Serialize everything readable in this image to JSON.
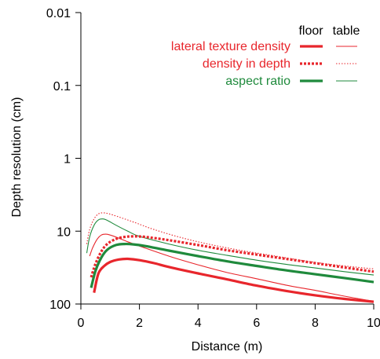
{
  "chart_data": {
    "type": "line",
    "title": "",
    "xlabel": "Distance (m)",
    "ylabel": "Depth resolution (cm)",
    "xlim": [
      0,
      10
    ],
    "ylim": [
      100,
      0.01
    ],
    "y_scale": "log",
    "y_inverted": true,
    "grid": false,
    "legend_position": "top-right",
    "legend_columns": [
      "floor",
      "table"
    ],
    "x_ticks": [
      {
        "value": 0,
        "label": "0"
      },
      {
        "value": 2,
        "label": "2"
      },
      {
        "value": 4,
        "label": "4"
      },
      {
        "value": 6,
        "label": "6"
      },
      {
        "value": 8,
        "label": "8"
      },
      {
        "value": 10,
        "label": "10"
      }
    ],
    "y_ticks": [
      {
        "value": 0.01,
        "label": "0.01"
      },
      {
        "value": 0.1,
        "label": "0.1"
      },
      {
        "value": 1,
        "label": "1"
      },
      {
        "value": 10,
        "label": "10"
      },
      {
        "value": 100,
        "label": "100"
      }
    ],
    "legend": [
      {
        "label": "lateral texture density",
        "color": "#e8262c",
        "style": "solid"
      },
      {
        "label": "density in depth",
        "color": "#e8262c",
        "style": "dotted"
      },
      {
        "label": "aspect ratio",
        "color": "#1f8a3c",
        "style": "solid"
      }
    ],
    "series": [
      {
        "legend_row": 0,
        "legend_column": 0,
        "color": "#e8262c",
        "style": "solid",
        "weight": "thick",
        "points": [
          [
            0.45,
            70
          ],
          [
            0.6,
            38
          ],
          [
            0.8,
            30
          ],
          [
            1.0,
            26.5
          ],
          [
            1.3,
            24.5
          ],
          [
            1.6,
            24
          ],
          [
            2.0,
            25
          ],
          [
            2.5,
            27.5
          ],
          [
            3.0,
            31
          ],
          [
            4.0,
            38
          ],
          [
            5.0,
            46
          ],
          [
            6.0,
            56
          ],
          [
            7.0,
            66
          ],
          [
            8.0,
            76
          ],
          [
            9.0,
            85
          ],
          [
            10.0,
            93
          ]
        ]
      },
      {
        "legend_row": 0,
        "legend_column": 1,
        "color": "#e8262c",
        "style": "solid",
        "weight": "thin",
        "points": [
          [
            0.3,
            22
          ],
          [
            0.4,
            17
          ],
          [
            0.55,
            13
          ],
          [
            0.7,
            11.3
          ],
          [
            0.85,
            11
          ],
          [
            1.0,
            11.3
          ],
          [
            1.3,
            12.5
          ],
          [
            1.6,
            14
          ],
          [
            2.0,
            16
          ],
          [
            3.0,
            22
          ],
          [
            4.0,
            29
          ],
          [
            5.0,
            37
          ],
          [
            6.0,
            45
          ],
          [
            7.0,
            55
          ],
          [
            8.0,
            65
          ],
          [
            9.0,
            78
          ],
          [
            10.0,
            92
          ]
        ]
      },
      {
        "legend_row": 1,
        "legend_column": 0,
        "color": "#e8262c",
        "style": "dotted",
        "weight": "thick",
        "points": [
          [
            0.35,
            43
          ],
          [
            0.5,
            28
          ],
          [
            0.7,
            19
          ],
          [
            0.9,
            15
          ],
          [
            1.2,
            12.8
          ],
          [
            1.5,
            12
          ],
          [
            1.8,
            11.8
          ],
          [
            2.2,
            12
          ],
          [
            3.0,
            13.3
          ],
          [
            4.0,
            15.5
          ],
          [
            5.0,
            18.3
          ],
          [
            6.0,
            21
          ],
          [
            7.0,
            24
          ],
          [
            8.0,
            27.5
          ],
          [
            9.0,
            31.5
          ],
          [
            10.0,
            36
          ]
        ]
      },
      {
        "legend_row": 1,
        "legend_column": 1,
        "color": "#e8262c",
        "style": "dotted",
        "weight": "thin",
        "points": [
          [
            0.2,
            15
          ],
          [
            0.3,
            9.5
          ],
          [
            0.45,
            6.8
          ],
          [
            0.6,
            5.8
          ],
          [
            0.75,
            5.6
          ],
          [
            0.9,
            5.7
          ],
          [
            1.1,
            6
          ],
          [
            1.4,
            6.6
          ],
          [
            1.8,
            7.5
          ],
          [
            2.5,
            9.5
          ],
          [
            3.5,
            12.5
          ],
          [
            4.5,
            15.5
          ],
          [
            5.5,
            18.5
          ],
          [
            6.5,
            21.5
          ],
          [
            7.5,
            25
          ],
          [
            8.5,
            28.5
          ],
          [
            10.0,
            33
          ]
        ]
      },
      {
        "legend_row": 2,
        "legend_column": 0,
        "color": "#1f8a3c",
        "style": "solid",
        "weight": "thick",
        "points": [
          [
            0.35,
            60
          ],
          [
            0.5,
            35
          ],
          [
            0.7,
            23
          ],
          [
            0.9,
            18
          ],
          [
            1.2,
            15.5
          ],
          [
            1.5,
            15
          ],
          [
            1.8,
            15.2
          ],
          [
            2.2,
            16
          ],
          [
            3.0,
            18.5
          ],
          [
            4.0,
            22
          ],
          [
            5.0,
            26
          ],
          [
            6.0,
            30
          ],
          [
            7.0,
            34.5
          ],
          [
            8.0,
            39
          ],
          [
            9.0,
            44
          ],
          [
            10.0,
            50
          ]
        ]
      },
      {
        "legend_row": 2,
        "legend_column": 1,
        "color": "#1f8a3c",
        "style": "solid",
        "weight": "thin",
        "points": [
          [
            0.2,
            20
          ],
          [
            0.3,
            12
          ],
          [
            0.45,
            8.3
          ],
          [
            0.6,
            7
          ],
          [
            0.75,
            6.8
          ],
          [
            0.9,
            7.1
          ],
          [
            1.2,
            8.3
          ],
          [
            1.6,
            10
          ],
          [
            2.0,
            11.8
          ],
          [
            3.0,
            15
          ],
          [
            4.0,
            18.3
          ],
          [
            5.0,
            21.5
          ],
          [
            6.0,
            25
          ],
          [
            7.0,
            28.5
          ],
          [
            8.0,
            32
          ],
          [
            9.0,
            36
          ],
          [
            10.0,
            40
          ]
        ]
      }
    ]
  }
}
